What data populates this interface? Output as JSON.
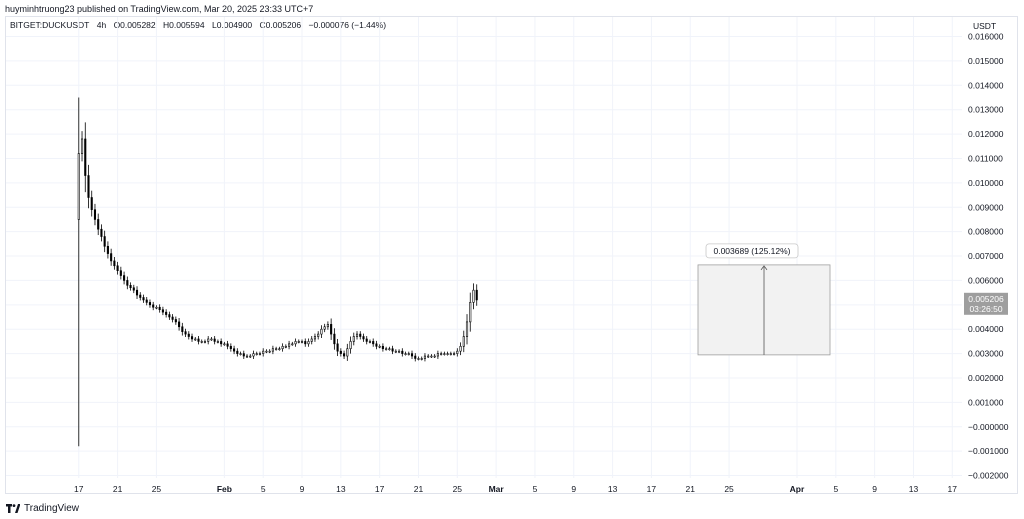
{
  "header": {
    "published": "huyminhtruong23 published on TradingView.com, Mar 20, 2025 23:33 UTC+7"
  },
  "legend": {
    "symbol": "BITGET:DUCKUSDT",
    "interval": "4h",
    "open": "O0.005282",
    "high": "H0.005594",
    "low": "L0.004900",
    "close": "C0.005206",
    "change": "−0.000076 (−1.44%)"
  },
  "currency": "USDT",
  "footer": {
    "brand": "TradingView"
  },
  "colors": {
    "up": "#ffffff",
    "down": "#000000",
    "wick": "#000000",
    "grid": "#f0f3fa",
    "axis_text": "#131722",
    "measure_fill": "#f2f2f2",
    "price_tag": "#9e9e9e"
  },
  "price_tag": {
    "price": "0.005206",
    "countdown": "03:26:50"
  },
  "chart_data": {
    "type": "candlestick",
    "ylim": [
      -0.0021,
      0.0168
    ],
    "y_ticks": [
      "0.016000",
      "0.015000",
      "0.014000",
      "0.013000",
      "0.012000",
      "0.011000",
      "0.010000",
      "0.009000",
      "0.008000",
      "0.007000",
      "0.006000",
      "0.005000",
      "0.004000",
      "0.003000",
      "0.002000",
      "0.001000",
      "−0.000000",
      "−0.001000",
      "−0.002000"
    ],
    "y_tick_values": [
      0.016,
      0.015,
      0.014,
      0.013,
      0.012,
      0.011,
      0.01,
      0.009,
      0.008,
      0.007,
      0.006,
      0.005,
      0.004,
      0.003,
      0.002,
      0.001,
      0.0,
      -0.001,
      -0.002
    ],
    "x_ticks": [
      "17",
      "21",
      "25",
      "Feb",
      "5",
      "9",
      "13",
      "17",
      "21",
      "25",
      "Mar",
      "5",
      "9",
      "13",
      "17",
      "21",
      "25",
      "Apr",
      "5",
      "9",
      "13",
      "17"
    ],
    "x_tick_days": [
      16,
      20,
      24,
      31,
      35,
      39,
      43,
      47,
      51,
      55,
      59,
      63,
      67,
      71,
      75,
      79,
      83,
      90,
      94,
      98,
      102,
      106
    ],
    "x_range_days": [
      8.5,
      107
    ],
    "candles_per_day": 6,
    "start_day": 16,
    "closes": [
      0.0112,
      0.0118,
      0.0103,
      0.0094,
      0.0089,
      0.0085,
      0.0081,
      0.0078,
      0.0074,
      0.0071,
      0.0068,
      0.0066,
      0.0064,
      0.0062,
      0.006,
      0.0058,
      0.0057,
      0.0056,
      0.0054,
      0.0053,
      0.0052,
      0.0051,
      0.005,
      0.0049,
      0.0049,
      0.0048,
      0.0047,
      0.0046,
      0.0045,
      0.0044,
      0.0043,
      0.0041,
      0.0039,
      0.0038,
      0.0037,
      0.0036,
      0.0036,
      0.0035,
      0.0035,
      0.0035,
      0.0036,
      0.0036,
      0.0035,
      0.0035,
      0.0034,
      0.0034,
      0.0033,
      0.0032,
      0.0031,
      0.003,
      0.003,
      0.0029,
      0.0029,
      0.0029,
      0.003,
      0.003,
      0.003,
      0.0031,
      0.0031,
      0.0031,
      0.0032,
      0.0032,
      0.0032,
      0.0033,
      0.0033,
      0.0034,
      0.0034,
      0.0035,
      0.0035,
      0.0035,
      0.0034,
      0.0035,
      0.0036,
      0.0037,
      0.0038,
      0.004,
      0.0041,
      0.0042,
      0.0038,
      0.0034,
      0.0031,
      0.003,
      0.0029,
      0.0032,
      0.0035,
      0.0037,
      0.0038,
      0.0037,
      0.0036,
      0.0035,
      0.0035,
      0.0034,
      0.0033,
      0.0033,
      0.0032,
      0.0032,
      0.0032,
      0.0031,
      0.0031,
      0.0031,
      0.003,
      0.003,
      0.003,
      0.0029,
      0.0028,
      0.0028,
      0.0028,
      0.0029,
      0.0029,
      0.0029,
      0.0029,
      0.003,
      0.003,
      0.003,
      0.003,
      0.003,
      0.003,
      0.0031,
      0.0033,
      0.0037,
      0.0043,
      0.0051,
      0.0056,
      0.0052
    ],
    "first_candle": {
      "open": 0.0085,
      "high": 0.0135,
      "low": -0.0008,
      "close": 0.0112
    },
    "measure": {
      "label": "0.003689 (125.12%)",
      "from_price": 0.002948,
      "to_price": 0.006637,
      "from_day": 79.8,
      "to_day": 93.4
    }
  }
}
